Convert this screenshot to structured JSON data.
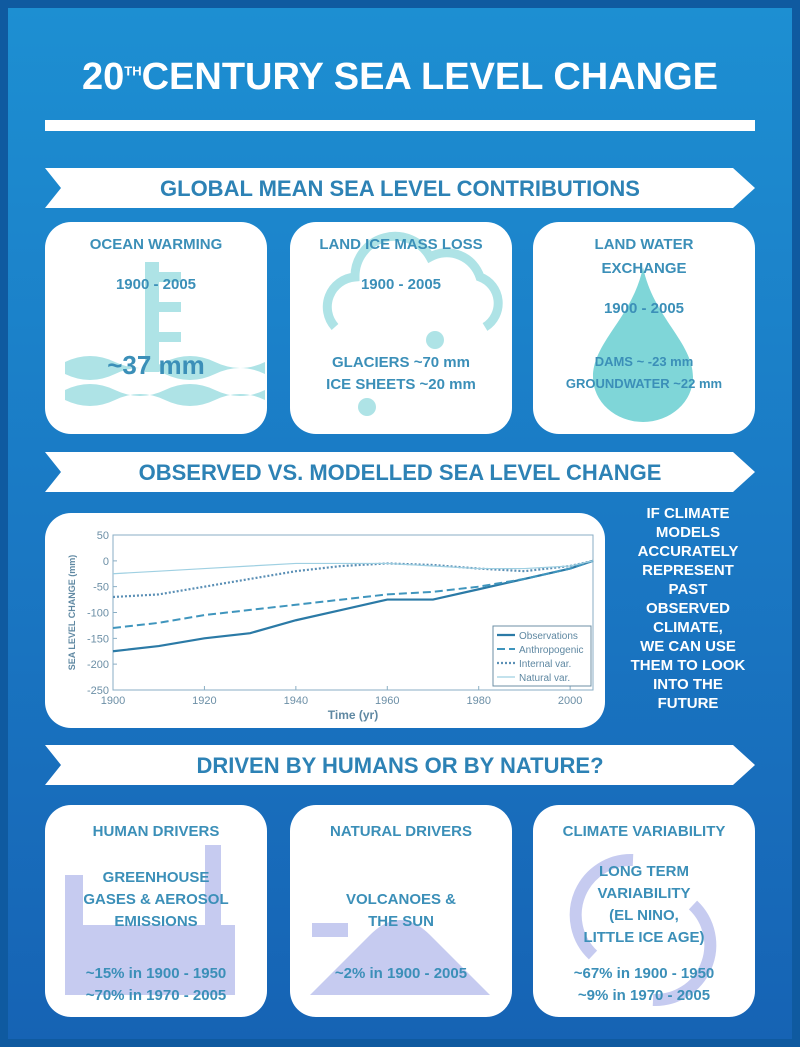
{
  "title": {
    "number": "20",
    "superscript": "TH",
    "text": "CENTURY SEA LEVEL CHANGE"
  },
  "contributions": {
    "heading": "GLOBAL MEAN SEA LEVEL CONTRIBUTIONS",
    "cards": [
      {
        "title": [
          "OCEAN WARMING"
        ],
        "period": "1900 - 2005",
        "lines": [
          "~37 mm"
        ]
      },
      {
        "title": [
          "LAND ICE MASS LOSS"
        ],
        "period": "1900 - 2005",
        "lines": [
          "GLACIERS ~70 mm",
          "ICE SHEETS ~20 mm"
        ]
      },
      {
        "title": [
          "LAND WATER",
          "EXCHANGE"
        ],
        "period": "1900 - 2005",
        "lines": [
          "DAMS ~ -23 mm",
          "GROUNDWATER ~22 mm"
        ]
      }
    ]
  },
  "comparison": {
    "heading": "OBSERVED VS. MODELLED SEA LEVEL CHANGE",
    "note": [
      "IF CLIMATE",
      "MODELS",
      "ACCURATELY",
      "REPRESENT",
      "PAST",
      "OBSERVED",
      "CLIMATE,",
      "WE CAN USE",
      "THEM TO LOOK",
      "INTO THE",
      "FUTURE"
    ]
  },
  "chart_data": {
    "type": "line",
    "x_label": "Time (yr)",
    "y_label": "SEA LEVEL CHANGE (mm)",
    "x": [
      1900,
      1910,
      1920,
      1930,
      1940,
      1950,
      1960,
      1970,
      1980,
      1990,
      2000,
      2005
    ],
    "xlim": [
      1900,
      2005
    ],
    "xticks": [
      1900,
      1920,
      1940,
      1960,
      1980,
      2000
    ],
    "ylim": [
      -250,
      50
    ],
    "yticks": [
      -250,
      -200,
      -150,
      -100,
      -50,
      0,
      50
    ],
    "legend": "lower right",
    "series": [
      {
        "name": "Observations",
        "color": "#2b7aa6",
        "style": "solid",
        "values": [
          -175,
          -165,
          -150,
          -140,
          -115,
          -95,
          -75,
          -75,
          -55,
          -35,
          -15,
          0
        ]
      },
      {
        "name": "Anthropogenic",
        "color": "#3f95bd",
        "style": "dashed",
        "values": [
          -130,
          -120,
          -105,
          -95,
          -85,
          -75,
          -65,
          -60,
          -50,
          -35,
          -15,
          0
        ]
      },
      {
        "name": "Internal var.",
        "color": "#5a8fb5",
        "style": "dotted",
        "values": [
          -70,
          -65,
          -50,
          -35,
          -20,
          -10,
          -5,
          -8,
          -15,
          -20,
          -10,
          0
        ]
      },
      {
        "name": "Natural var.",
        "color": "#9fd0e2",
        "style": "thin",
        "values": [
          -25,
          -20,
          -15,
          -10,
          -5,
          -5,
          -5,
          -10,
          -15,
          -15,
          -10,
          0
        ]
      }
    ]
  },
  "drivers": {
    "heading": "DRIVEN BY HUMANS OR BY NATURE?",
    "cards": [
      {
        "title": "HUMAN DRIVERS",
        "body": [
          "GREENHOUSE",
          "GASES & AEROSOL",
          "EMISSIONS"
        ],
        "stats": [
          "~15% in 1900 - 1950",
          "~70% in 1970 - 2005"
        ]
      },
      {
        "title": "NATURAL DRIVERS",
        "body": [
          "VOLCANOES &",
          "THE SUN"
        ],
        "stats": [
          "~2% in 1900 - 2005"
        ]
      },
      {
        "title": "CLIMATE VARIABILITY",
        "body": [
          "LONG TERM",
          "VARIABILITY",
          "(EL NINO,",
          "LITTLE ICE AGE)"
        ],
        "stats": [
          "~67% in 1900 - 1950",
          "~9% in 1970 - 2005"
        ]
      }
    ]
  }
}
